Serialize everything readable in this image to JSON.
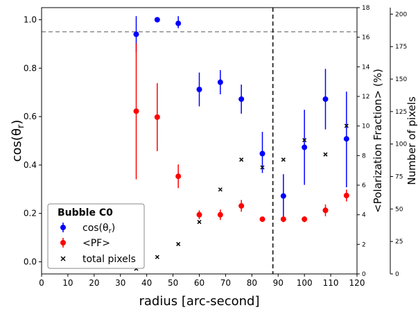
{
  "chart_data": {
    "type": "scatter",
    "legend": {
      "title": "Bubble C0",
      "placement": "lower-left"
    },
    "x_axis": {
      "label": "radius [arc-second]",
      "lim": [
        0,
        120
      ],
      "ticks": [
        0,
        10,
        20,
        30,
        40,
        50,
        60,
        70,
        80,
        90,
        100,
        110,
        120
      ]
    },
    "y_axis_left": {
      "label": "cos(θr)",
      "lim": [
        -0.05,
        1.05
      ],
      "ticks": [
        0.0,
        0.2,
        0.4,
        0.6,
        0.8,
        1.0
      ],
      "tick_labels": [
        "0.0",
        "0.2",
        "0.4",
        "0.6",
        "0.8",
        "1.0"
      ]
    },
    "y_axis_right1": {
      "label": "<Polarization Fraction> (%)",
      "lim": [
        0,
        18
      ],
      "ticks": [
        0,
        2,
        4,
        6,
        8,
        10,
        12,
        14,
        16,
        18
      ]
    },
    "y_axis_right2": {
      "label": "Number of pixels",
      "lim": [
        0,
        205
      ],
      "ticks": [
        0,
        25,
        50,
        75,
        100,
        125,
        150,
        175,
        200
      ]
    },
    "reference_lines": {
      "horizontal_cos": 0.95,
      "vertical_radius": 88
    },
    "series": [
      {
        "name": "cos(θr)",
        "color": "#0000ff",
        "axis": "left",
        "marker": "circle-errorbar",
        "x": [
          36,
          44,
          52,
          60,
          68,
          76,
          84,
          92,
          100,
          108,
          116
        ],
        "y": [
          0.94,
          1.0,
          0.985,
          0.712,
          0.742,
          0.672,
          0.447,
          0.272,
          0.473,
          0.672,
          0.508
        ],
        "err_low": [
          0.075,
          0.01,
          0.02,
          0.07,
          0.05,
          0.06,
          0.08,
          0.09,
          0.155,
          0.125,
          0.2
        ],
        "err_high": [
          0.075,
          0.01,
          0.03,
          0.07,
          0.05,
          0.06,
          0.09,
          0.09,
          0.155,
          0.125,
          0.195
        ]
      },
      {
        "name": "<PF>",
        "color": "#ff0000",
        "axis": "right1",
        "marker": "circle-errorbar",
        "x": [
          36,
          44,
          52,
          60,
          68,
          76,
          84,
          92,
          100,
          108,
          116
        ],
        "y": [
          11.0,
          10.6,
          6.6,
          4.0,
          4.0,
          4.6,
          3.7,
          3.7,
          3.7,
          4.3,
          5.3
        ],
        "err_low": [
          4.6,
          2.3,
          0.8,
          0.3,
          0.35,
          0.4,
          0.15,
          0.2,
          0.2,
          0.4,
          0.4
        ],
        "err_high": [
          4.6,
          2.3,
          0.8,
          0.3,
          0.35,
          0.4,
          0.15,
          0.2,
          0.2,
          0.4,
          0.4
        ]
      },
      {
        "name": "total pixels",
        "color": "#000000",
        "axis": "right2",
        "marker": "x",
        "x": [
          36,
          44,
          52,
          60,
          68,
          76,
          84,
          92,
          100,
          108,
          116
        ],
        "y": [
          4,
          13,
          23,
          40,
          65,
          88,
          82,
          88,
          103,
          92,
          114
        ]
      }
    ]
  }
}
